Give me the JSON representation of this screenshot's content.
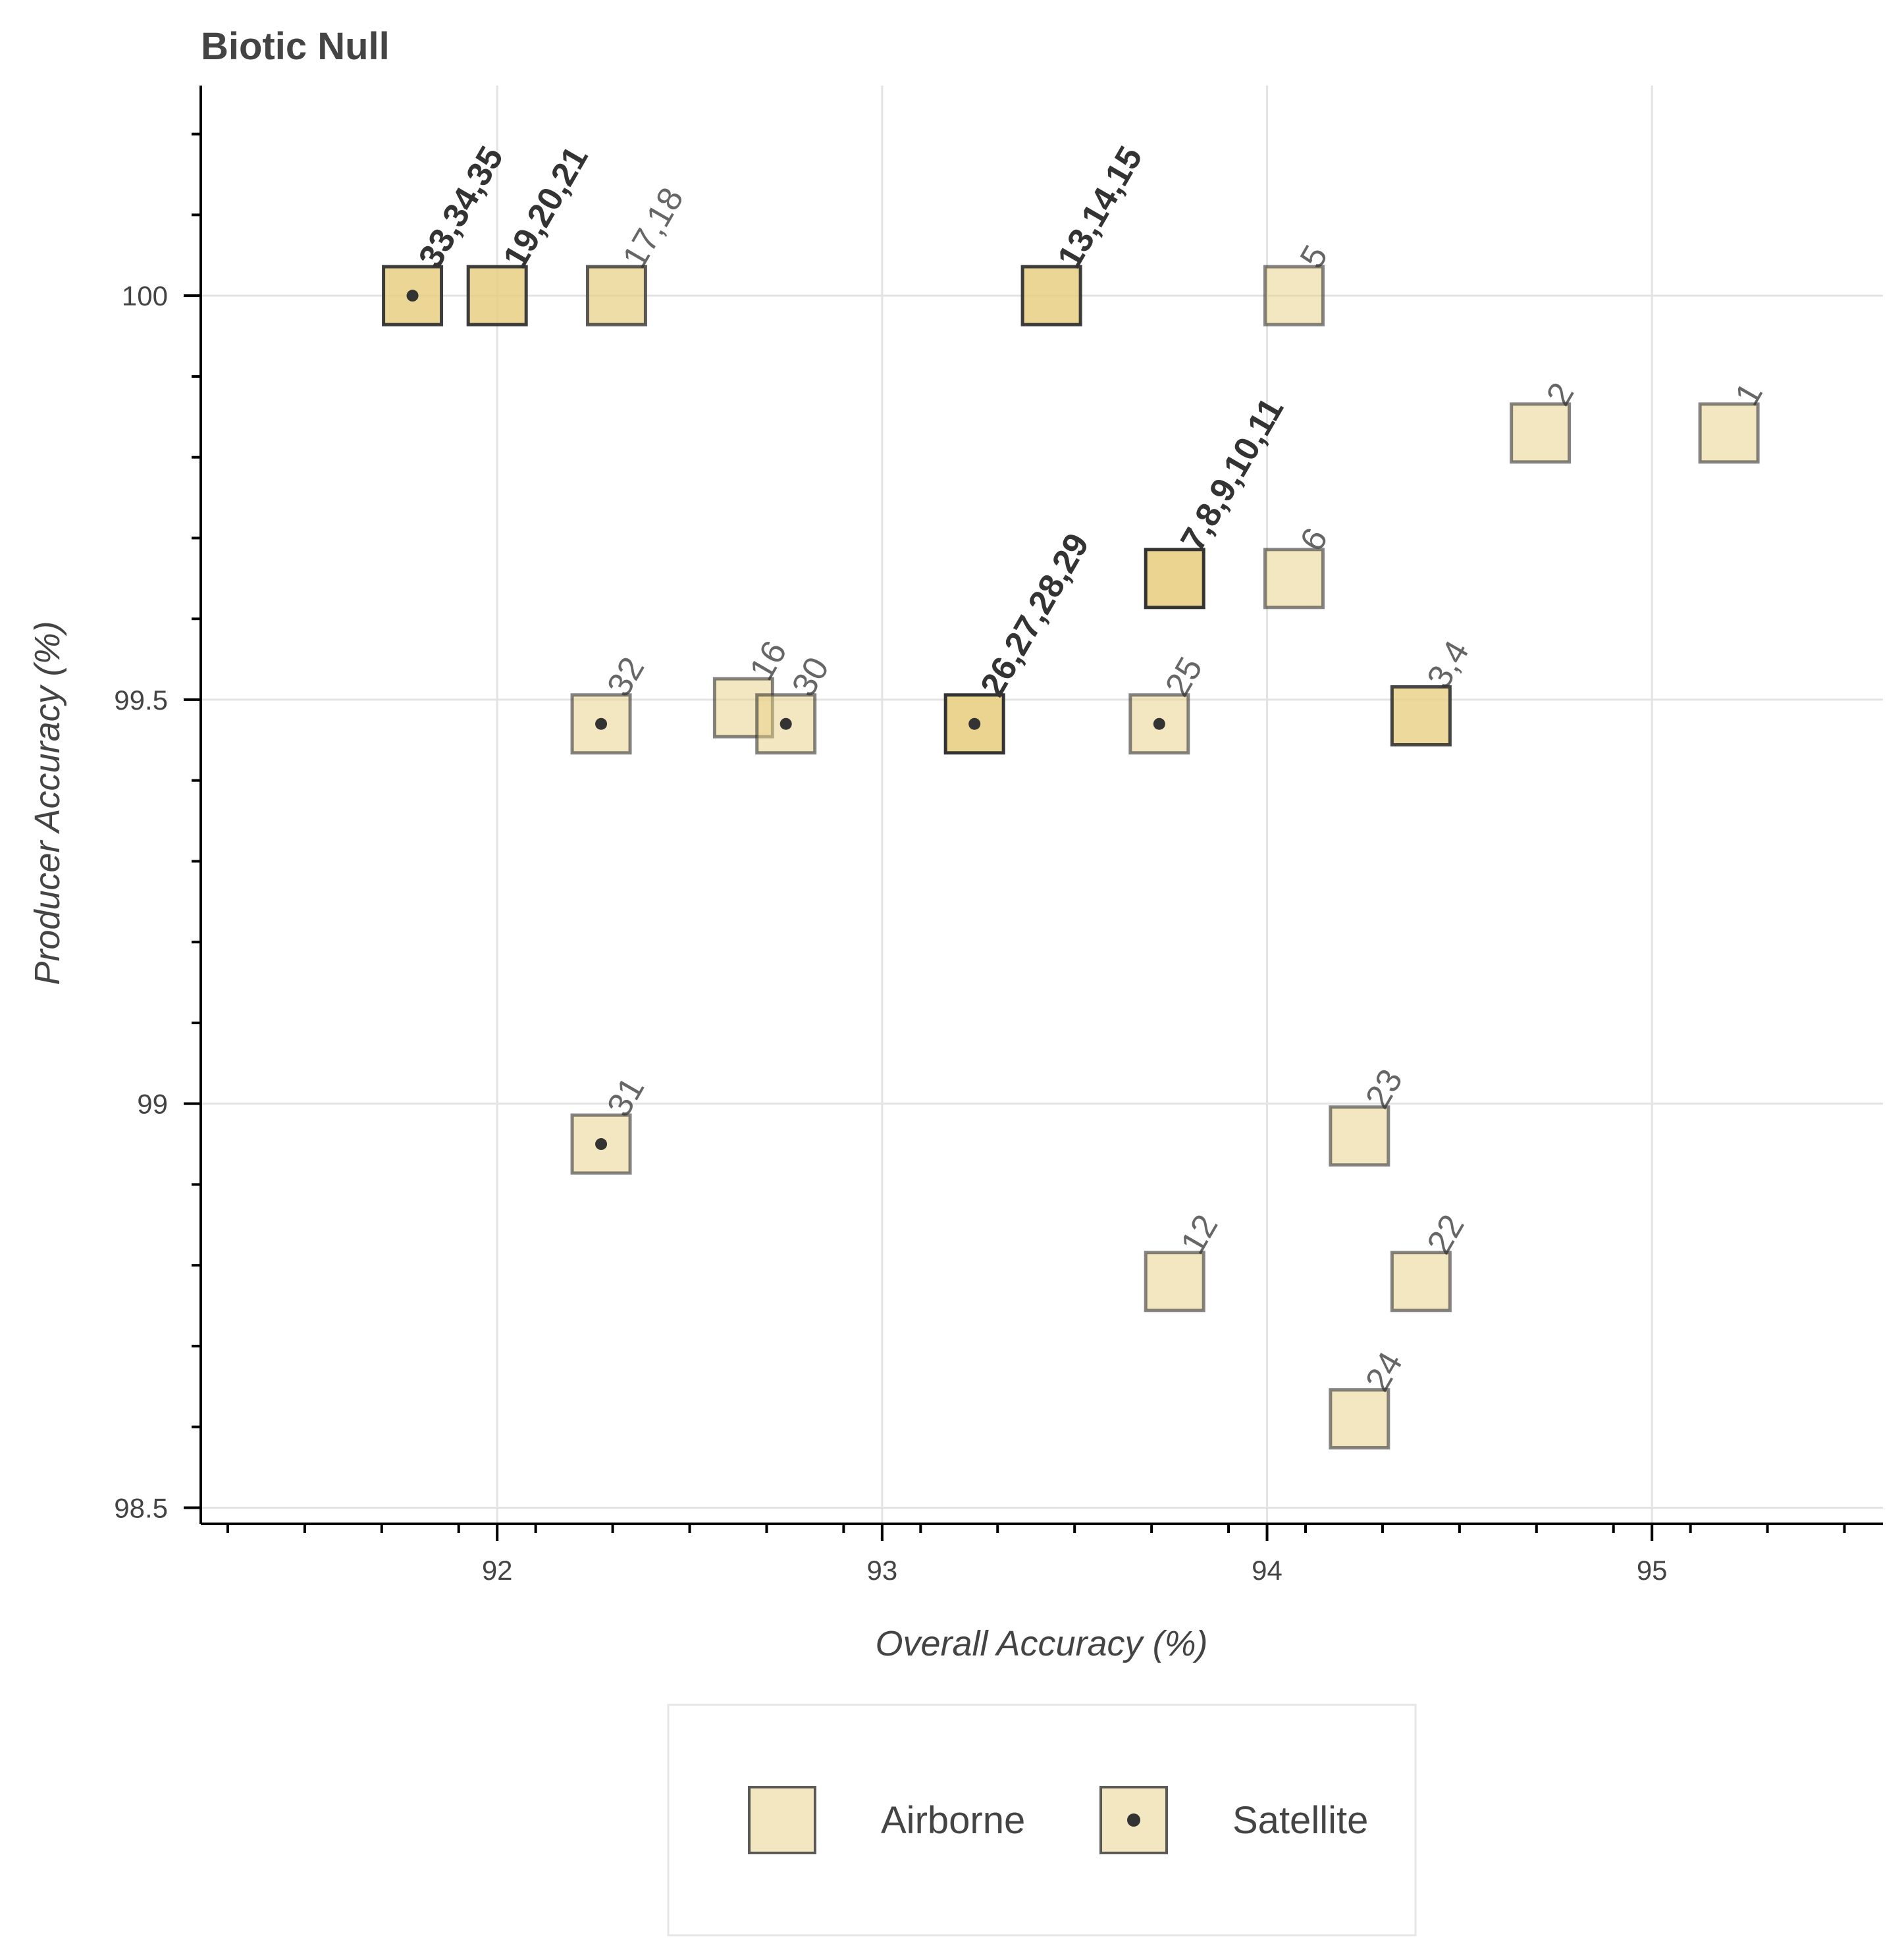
{
  "chart_data": {
    "type": "scatter",
    "title": "Biotic Null",
    "xlabel": "Overall Accuracy (%)",
    "ylabel": "Producer Accuracy (%)",
    "xlim": [
      91.23,
      95.6
    ],
    "ylim": [
      98.48,
      100.26
    ],
    "xticks": [
      "92",
      "93",
      "94",
      "95"
    ],
    "yticks": [
      "98.5",
      "99",
      "99.5",
      "100"
    ],
    "color": "#e8cf83",
    "edge_color": "#333333",
    "legend": [
      {
        "name": "Airborne",
        "marker": "square"
      },
      {
        "name": "Satellite",
        "marker": "square-dot"
      }
    ],
    "points": [
      {
        "label": "33,34,35",
        "x": 91.78,
        "y": 100.0,
        "series": "Satellite",
        "alpha": 0.85,
        "bold": true
      },
      {
        "label": "19,20,21",
        "x": 92.0,
        "y": 100.0,
        "series": "Airborne",
        "alpha": 0.85,
        "bold": true
      },
      {
        "label": "17,18",
        "x": 92.31,
        "y": 100.0,
        "series": "Airborne",
        "alpha": 0.7,
        "bold": false
      },
      {
        "label": "13,14,15",
        "x": 93.44,
        "y": 100.0,
        "series": "Airborne",
        "alpha": 0.85,
        "bold": true
      },
      {
        "label": "5",
        "x": 94.07,
        "y": 100.0,
        "series": "Airborne",
        "alpha": 0.5,
        "bold": false
      },
      {
        "label": "2",
        "x": 94.71,
        "y": 99.83,
        "series": "Airborne",
        "alpha": 0.5,
        "bold": false
      },
      {
        "label": "1",
        "x": 95.2,
        "y": 99.83,
        "series": "Airborne",
        "alpha": 0.5,
        "bold": false
      },
      {
        "label": "7,8,9,10,11",
        "x": 93.76,
        "y": 99.65,
        "series": "Airborne",
        "alpha": 0.9,
        "bold": true
      },
      {
        "label": "6",
        "x": 94.07,
        "y": 99.65,
        "series": "Airborne",
        "alpha": 0.5,
        "bold": false
      },
      {
        "label": "32",
        "x": 92.27,
        "y": 99.47,
        "series": "Satellite",
        "alpha": 0.5,
        "bold": false
      },
      {
        "label": "16",
        "x": 92.64,
        "y": 99.49,
        "series": "Airborne",
        "alpha": 0.5,
        "bold": false
      },
      {
        "label": "30",
        "x": 92.75,
        "y": 99.47,
        "series": "Satellite",
        "alpha": 0.5,
        "bold": false
      },
      {
        "label": "26,27,28,29",
        "x": 93.24,
        "y": 99.47,
        "series": "Satellite",
        "alpha": 0.9,
        "bold": true
      },
      {
        "label": "25",
        "x": 93.72,
        "y": 99.47,
        "series": "Satellite",
        "alpha": 0.5,
        "bold": false
      },
      {
        "label": "3,4",
        "x": 94.4,
        "y": 99.48,
        "series": "Airborne",
        "alpha": 0.8,
        "bold": false
      },
      {
        "label": "31",
        "x": 92.27,
        "y": 98.95,
        "series": "Satellite",
        "alpha": 0.5,
        "bold": false
      },
      {
        "label": "23",
        "x": 94.24,
        "y": 98.96,
        "series": "Airborne",
        "alpha": 0.5,
        "bold": false
      },
      {
        "label": "12",
        "x": 93.76,
        "y": 98.78,
        "series": "Airborne",
        "alpha": 0.5,
        "bold": false
      },
      {
        "label": "22",
        "x": 94.4,
        "y": 98.78,
        "series": "Airborne",
        "alpha": 0.5,
        "bold": false
      },
      {
        "label": "24",
        "x": 94.24,
        "y": 98.61,
        "series": "Airborne",
        "alpha": 0.5,
        "bold": false
      }
    ]
  }
}
